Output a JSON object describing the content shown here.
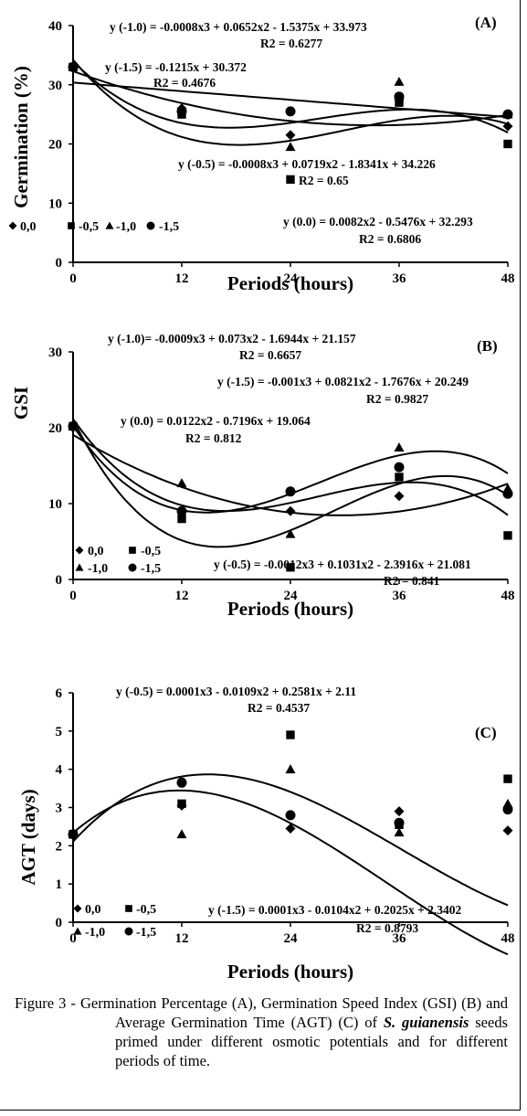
{
  "colors": {
    "ink": "#000000",
    "background": "#ffffff"
  },
  "chart_data": [
    {
      "type": "scatter",
      "panel_label": "(A)",
      "xlabel": "Periods (hours)",
      "ylabel": "Germination (%)",
      "xlim": [
        0,
        48
      ],
      "ylim": [
        0,
        40
      ],
      "xticks": [
        "0",
        "12",
        "24",
        "36",
        "48"
      ],
      "yticks": [
        "0",
        "10",
        "20",
        "30",
        "40"
      ],
      "x": [
        0,
        12,
        24,
        36,
        48
      ],
      "series": [
        {
          "name": "0,0",
          "marker": "diamond",
          "values": [
            33,
            26,
            21.5,
            27.5,
            23
          ]
        },
        {
          "name": "-0,5",
          "marker": "square",
          "values": [
            33,
            25,
            14,
            27,
            20
          ]
        },
        {
          "name": "-1,0",
          "marker": "triangle",
          "values": [
            33,
            26,
            19.5,
            30.5,
            25
          ]
        },
        {
          "name": "-1,5",
          "marker": "circle",
          "values": [
            33,
            25.5,
            25.5,
            28,
            25
          ]
        }
      ],
      "equations": [
        {
          "eq": "y (-1.0) = -0.0008x3 + 0.0652x2 - 1.5375x + 33.973",
          "r2": "R2 = 0.6277",
          "coef": [
            33.973,
            -1.5375,
            0.0652,
            -0.0008
          ]
        },
        {
          "eq": "y (-1.5) = -0.1215x + 30.372",
          "r2": "R2 = 0.4676",
          "coef": [
            30.372,
            -0.1215
          ]
        },
        {
          "eq": "y (-0.5) = -0.0008x3 + 0.0719x2 - 1.8341x + 34.226",
          "r2": "R2 = 0.65",
          "coef": [
            34.226,
            -1.8341,
            0.0719,
            -0.0008
          ]
        },
        {
          "eq": "y (0.0) = 0.0082x2 - 0.5476x + 32.293",
          "r2": "R2 = 0.6806",
          "coef": [
            32.293,
            -0.5476,
            0.0082
          ]
        }
      ],
      "legend_labels": [
        "0,0",
        "-0,5",
        "-1,0",
        "-1,5"
      ]
    },
    {
      "type": "scatter",
      "panel_label": "(B)",
      "xlabel": "Periods (hours)",
      "ylabel": "GSI",
      "xlim": [
        0,
        48
      ],
      "ylim": [
        0,
        30
      ],
      "xticks": [
        "0",
        "12",
        "24",
        "36",
        "48"
      ],
      "yticks": [
        "0",
        "10",
        "20",
        "30"
      ],
      "x": [
        0,
        12,
        24,
        36,
        48
      ],
      "series": [
        {
          "name": "0,0",
          "marker": "diamond",
          "values": [
            20.2,
            9,
            9,
            11,
            11.5
          ]
        },
        {
          "name": "-0,5",
          "marker": "square",
          "values": [
            20.2,
            8,
            1.6,
            13.5,
            5.8
          ]
        },
        {
          "name": "-1,0",
          "marker": "triangle",
          "values": [
            20.2,
            12.7,
            6,
            17.4,
            12
          ]
        },
        {
          "name": "-1,5",
          "marker": "circle",
          "values": [
            20.2,
            9,
            11.6,
            14.8,
            11.3
          ]
        }
      ],
      "equations": [
        {
          "eq": "y (-1.0)= -0.0009x3 + 0.073x2 - 1.6944x + 21.157",
          "r2": "R2 = 0.6657",
          "coef": [
            21.157,
            -1.6944,
            0.073,
            -0.0009
          ]
        },
        {
          "eq": "y (-1.5) = -0.001x3 + 0.0821x2 - 1.7676x + 20.249",
          "r2": "R2 = 0.9827",
          "coef": [
            20.249,
            -1.7676,
            0.0821,
            -0.001
          ]
        },
        {
          "eq": "y (0.0) = 0.0122x2 - 0.7196x + 19.064",
          "r2": "R2 = 0.812",
          "coef": [
            19.064,
            -0.7196,
            0.0122
          ]
        },
        {
          "eq": "y (-0.5) = -0.0012x3 + 0.1031x2 - 2.3916x + 21.081",
          "r2": "R2 = 0.841",
          "coef": [
            21.081,
            -2.3916,
            0.1031,
            -0.0012
          ]
        }
      ],
      "legend_labels": [
        "0,0",
        "-0,5",
        "-1,0",
        "-1,5"
      ]
    },
    {
      "type": "scatter",
      "panel_label": "(C)",
      "xlabel": "Periods (hours)",
      "ylabel": "AGT (days)",
      "xlim": [
        0,
        48
      ],
      "ylim": [
        0,
        6
      ],
      "xticks": [
        "0",
        "12",
        "24",
        "36",
        "48"
      ],
      "yticks": [
        "0",
        "1",
        "2",
        "3",
        "4",
        "5",
        "6"
      ],
      "x": [
        0,
        12,
        24,
        36,
        48
      ],
      "series": [
        {
          "name": "0,0",
          "marker": "diamond",
          "values": [
            2.3,
            3.05,
            2.45,
            2.9,
            2.4
          ]
        },
        {
          "name": "-0,5",
          "marker": "square",
          "values": [
            2.3,
            3.1,
            4.9,
            2.55,
            3.75
          ]
        },
        {
          "name": "-1,0",
          "marker": "triangle",
          "values": [
            2.3,
            2.3,
            4.0,
            2.35,
            3.1
          ]
        },
        {
          "name": "-1,5",
          "marker": "circle",
          "values": [
            2.3,
            3.65,
            2.8,
            2.6,
            2.95
          ]
        }
      ],
      "equations": [
        {
          "eq": "y (-0.5) = 0.0001x3 - 0.0109x2 + 0.2581x + 2.11",
          "r2": "R2 = 0.4537",
          "coef": [
            2.11,
            0.2581,
            -0.0109,
            0.0001
          ]
        },
        {
          "eq": "y (-1.5) = 0.0001x3 - 0.0104x2 + 0.2025x + 2.3402",
          "r2": "R2 = 0.8793",
          "coef": [
            2.3402,
            0.2025,
            -0.0104,
            0.0001
          ]
        }
      ],
      "legend_labels": [
        "0,0",
        "-0,5",
        "-1,0",
        "-1,5"
      ]
    }
  ],
  "caption": {
    "prefix": "Figure 3 - ",
    "text_1": "Germination Percentage (A), Germination Speed Index (GSI) (B) and Average Germination Time (AGT) (C) of ",
    "species": "S. guianensis",
    "text_2": " seeds primed under different osmotic potentials and for different periods of time."
  }
}
